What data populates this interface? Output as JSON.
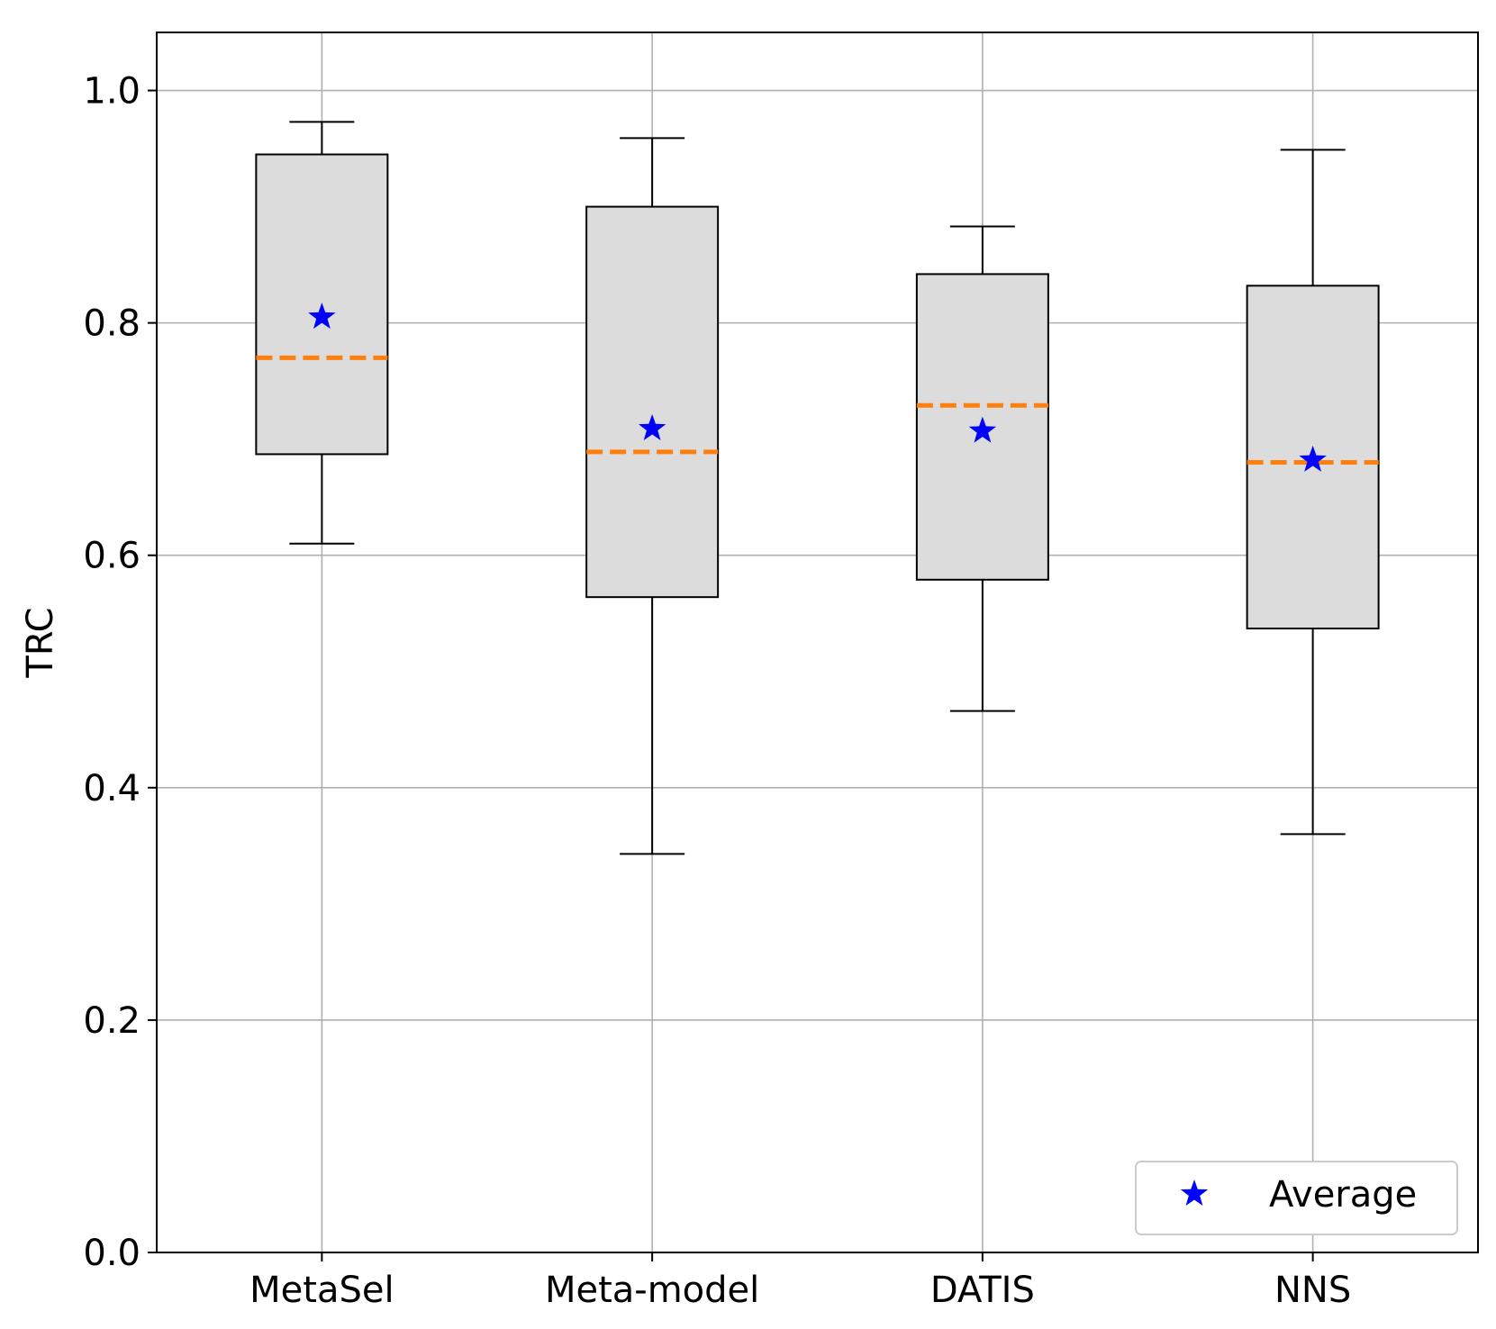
{
  "chart_data": {
    "type": "boxplot",
    "title": "",
    "xlabel": "",
    "ylabel": "TRC",
    "ylim": [
      0.0,
      1.05
    ],
    "yticks": [
      0.0,
      0.2,
      0.4,
      0.6,
      0.8,
      1.0
    ],
    "ytick_labels": [
      "0.0",
      "0.2",
      "0.4",
      "0.6",
      "0.8",
      "1.0"
    ],
    "grid": true,
    "categories": [
      "MetaSel",
      "Meta-model",
      "DATIS",
      "NNS"
    ],
    "boxes": [
      {
        "name": "MetaSel",
        "whisker_low": 0.61,
        "q1": 0.687,
        "median": 0.77,
        "q3": 0.945,
        "whisker_high": 0.973,
        "mean": 0.805
      },
      {
        "name": "Meta-model",
        "whisker_low": 0.343,
        "q1": 0.564,
        "median": 0.689,
        "q3": 0.9,
        "whisker_high": 0.959,
        "mean": 0.709
      },
      {
        "name": "DATIS",
        "whisker_low": 0.466,
        "q1": 0.579,
        "median": 0.729,
        "q3": 0.842,
        "whisker_high": 0.883,
        "mean": 0.707
      },
      {
        "name": "NNS",
        "whisker_low": 0.36,
        "q1": 0.537,
        "median": 0.68,
        "q3": 0.832,
        "whisker_high": 0.949,
        "mean": 0.682
      }
    ],
    "legend": {
      "entries": [
        "Average"
      ],
      "placement": "bottom-right"
    },
    "colors": {
      "box_fill": "#dcdcdc",
      "median": "#ff7f0e",
      "mean_marker": "#0000ff",
      "grid": "#b0b0b0",
      "axis": "#000000"
    }
  }
}
